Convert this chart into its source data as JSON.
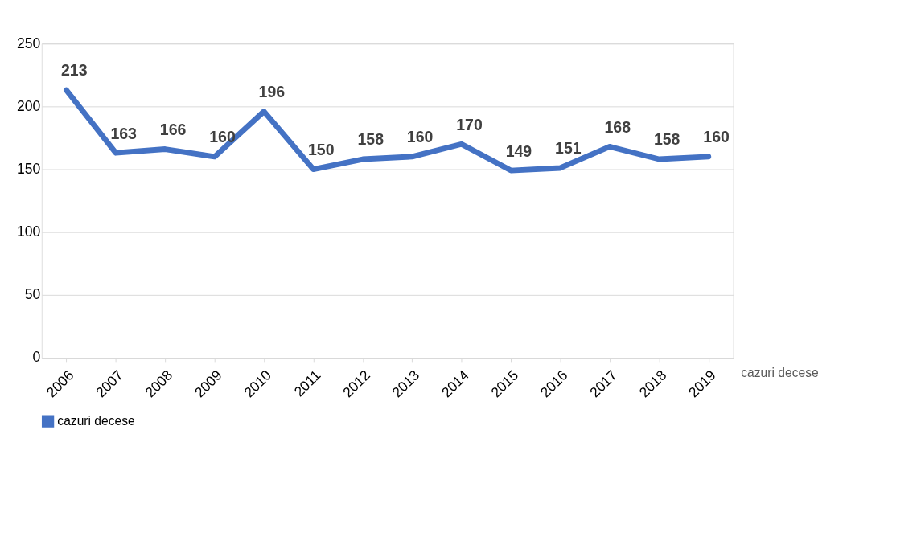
{
  "chart_data": {
    "type": "line",
    "categories": [
      "2006",
      "2007",
      "2008",
      "2009",
      "2010",
      "2011",
      "2012",
      "2013",
      "2014",
      "2015",
      "2016",
      "2017",
      "2018",
      "2019"
    ],
    "series": [
      {
        "name": "cazuri decese",
        "color": "#4472c4",
        "values": [
          213,
          163,
          166,
          160,
          196,
          150,
          158,
          160,
          170,
          149,
          151,
          168,
          158,
          160
        ]
      }
    ],
    "ylim": [
      0,
      250
    ],
    "yticks": [
      0,
      50,
      100,
      150,
      200,
      250
    ],
    "grid": "y",
    "data_labels": true,
    "legend": "bottom",
    "marker": "none",
    "annotations": [
      "cazuri decese"
    ]
  }
}
